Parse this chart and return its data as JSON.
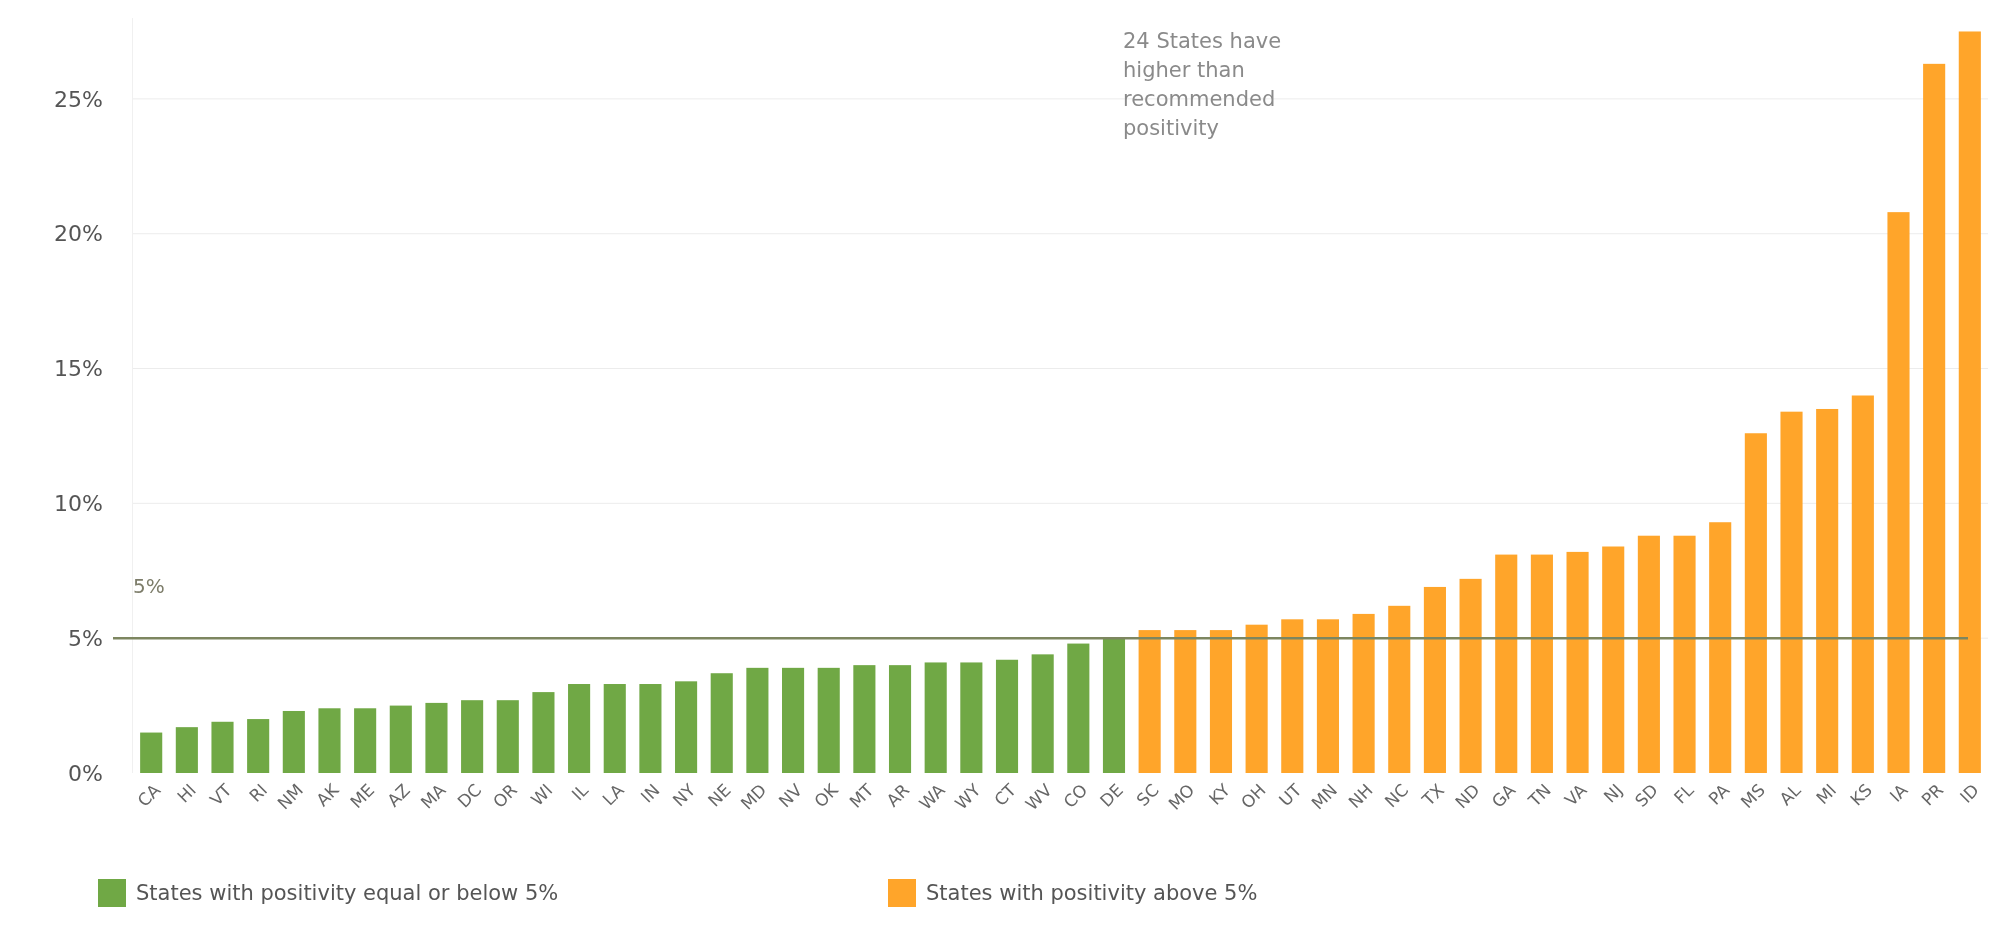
{
  "chart_data": {
    "type": "bar",
    "categories": [
      "CA",
      "HI",
      "VT",
      "RI",
      "NM",
      "AK",
      "ME",
      "AZ",
      "MA",
      "DC",
      "OR",
      "WI",
      "IL",
      "LA",
      "IN",
      "NY",
      "NE",
      "MD",
      "NV",
      "OK",
      "MT",
      "AR",
      "WA",
      "WY",
      "CT",
      "WV",
      "CO",
      "DE",
      "SC",
      "MO",
      "KY",
      "OH",
      "UT",
      "MN",
      "NH",
      "NC",
      "TX",
      "ND",
      "GA",
      "TN",
      "VA",
      "NJ",
      "SD",
      "FL",
      "PA",
      "MS",
      "AL",
      "MI",
      "KS",
      "IA",
      "PR",
      "ID"
    ],
    "series": [
      {
        "name": "States with positivity equal or below 5%",
        "color": "#70a845",
        "values": [
          1.5,
          1.7,
          1.9,
          2.0,
          2.3,
          2.4,
          2.4,
          2.5,
          2.6,
          2.7,
          2.7,
          3.0,
          3.3,
          3.3,
          3.3,
          3.4,
          3.7,
          3.9,
          3.9,
          3.9,
          4.0,
          4.0,
          4.1,
          4.1,
          4.2,
          4.4,
          4.8,
          5.0,
          null,
          null,
          null,
          null,
          null,
          null,
          null,
          null,
          null,
          null,
          null,
          null,
          null,
          null,
          null,
          null,
          null,
          null,
          null,
          null,
          null,
          null,
          null,
          null
        ]
      },
      {
        "name": "States with positivity above 5%",
        "color": "#ffa52a",
        "values": [
          null,
          null,
          null,
          null,
          null,
          null,
          null,
          null,
          null,
          null,
          null,
          null,
          null,
          null,
          null,
          null,
          null,
          null,
          null,
          null,
          null,
          null,
          null,
          null,
          null,
          null,
          null,
          null,
          5.3,
          5.3,
          5.3,
          5.5,
          5.7,
          5.7,
          5.9,
          6.2,
          6.9,
          7.2,
          8.1,
          8.1,
          8.2,
          8.4,
          8.8,
          8.8,
          9.3,
          12.6,
          13.4,
          13.5,
          14.0,
          20.8,
          26.3,
          27.5
        ]
      }
    ],
    "ylim": [
      0,
      28
    ],
    "yticks": [
      {
        "value": 0,
        "label": "0%"
      },
      {
        "value": 5,
        "label": "5%"
      },
      {
        "value": 10,
        "label": "10%"
      },
      {
        "value": 15,
        "label": "15%"
      },
      {
        "value": 20,
        "label": "20%"
      },
      {
        "value": 25,
        "label": "25%"
      }
    ],
    "grid": "y",
    "legend": "bottom",
    "ref_lines": [
      {
        "axis": "y",
        "value": 5,
        "label": "5%",
        "color": "#7d8660"
      }
    ],
    "annotations": [
      "24 States have higher than recommended positivity"
    ]
  }
}
